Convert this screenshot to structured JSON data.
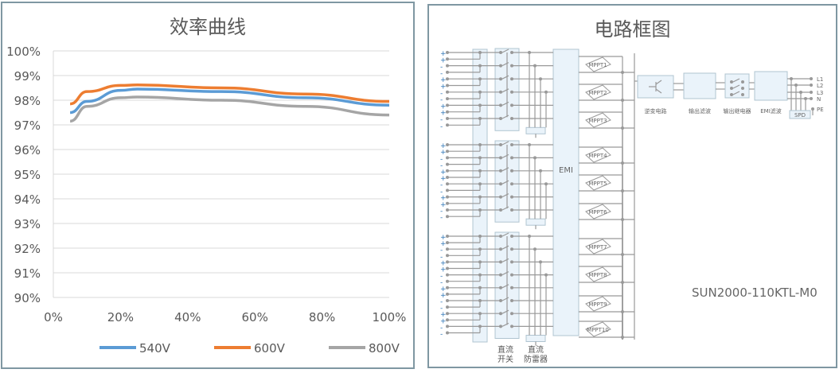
{
  "chart_data": {
    "type": "line",
    "title": "效率曲线",
    "x": [
      5,
      10,
      20,
      25,
      50,
      75,
      100
    ],
    "xticks": [
      "0%",
      "20%",
      "40%",
      "60%",
      "80%",
      "100%"
    ],
    "xlim": [
      0,
      100
    ],
    "yticks": [
      "90%",
      "91%",
      "92%",
      "93%",
      "94%",
      "95%",
      "96%",
      "97%",
      "98%",
      "99%",
      "100%"
    ],
    "ylim": [
      90,
      100
    ],
    "grid": true,
    "legend": "bottom",
    "series": [
      {
        "name": "540V",
        "color": "#5b9bd5",
        "values": [
          97.5,
          97.95,
          98.4,
          98.45,
          98.35,
          98.1,
          97.8
        ]
      },
      {
        "name": "600V",
        "color": "#ed7d31",
        "values": [
          97.85,
          98.35,
          98.6,
          98.62,
          98.5,
          98.25,
          97.95
        ]
      },
      {
        "name": "800V",
        "color": "#a5a5a5",
        "values": [
          97.15,
          97.75,
          98.1,
          98.13,
          98.0,
          97.75,
          97.4
        ]
      }
    ]
  },
  "diagram": {
    "title": "电路框图",
    "emi": "EMI",
    "mppt": [
      "MPPT1",
      "MPPT2",
      "MPPT3",
      "MPPT4",
      "MPPT5",
      "MPPT6",
      "MPPT7",
      "MPPT8",
      "MPPT9",
      "MPPT10"
    ],
    "blocks": [
      "逆变电路",
      "输出滤波",
      "输出继电器",
      "EMI滤波"
    ],
    "spd": "SPD",
    "outputs": [
      "L1",
      "L2",
      "L3",
      "N",
      "PE"
    ],
    "dc_switch": [
      "直流",
      "开关"
    ],
    "dc_spd": [
      "直流",
      "防雷器"
    ],
    "model": "SUN2000-110KTL-M0",
    "signs": [
      "+",
      "+",
      "-",
      "-",
      "+",
      "+",
      "-",
      "-",
      "+",
      "+",
      "-",
      "-"
    ]
  }
}
